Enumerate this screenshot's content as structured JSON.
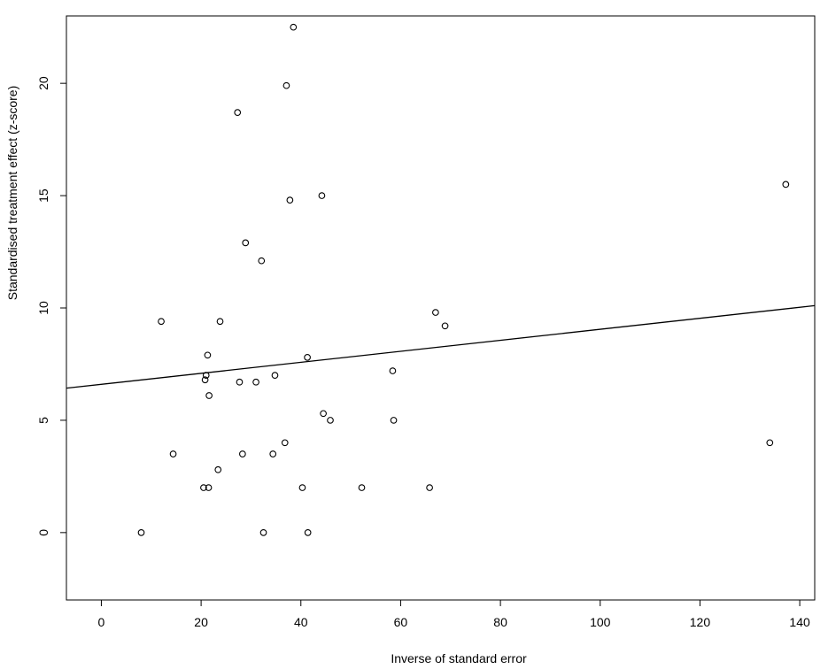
{
  "chart_data": {
    "type": "scatter",
    "title": "",
    "xlabel": "Inverse of standard error",
    "ylabel": "Standardised treatment effect (z-score)",
    "xlim": [
      -7,
      143
    ],
    "ylim": [
      -3,
      23
    ],
    "xticks": [
      "0",
      "20",
      "40",
      "60",
      "80",
      "100",
      "120",
      "140"
    ],
    "yticks": [
      "0",
      "5",
      "10",
      "15",
      "20"
    ],
    "grid": false,
    "legend": "none",
    "colors": {
      "points": "#000000",
      "line": "#000000",
      "frame": "#000000"
    },
    "points": [
      {
        "x": 8.0,
        "y": 0.0
      },
      {
        "x": 12.0,
        "y": 9.4
      },
      {
        "x": 14.4,
        "y": 3.5
      },
      {
        "x": 20.5,
        "y": 2.0
      },
      {
        "x": 20.8,
        "y": 6.8
      },
      {
        "x": 21.0,
        "y": 7.0
      },
      {
        "x": 21.3,
        "y": 7.9
      },
      {
        "x": 21.5,
        "y": 2.0
      },
      {
        "x": 21.6,
        "y": 6.1
      },
      {
        "x": 23.4,
        "y": 2.8
      },
      {
        "x": 23.8,
        "y": 9.4
      },
      {
        "x": 27.3,
        "y": 18.7
      },
      {
        "x": 27.7,
        "y": 6.7
      },
      {
        "x": 28.3,
        "y": 3.5
      },
      {
        "x": 28.9,
        "y": 12.9
      },
      {
        "x": 31.0,
        "y": 6.7
      },
      {
        "x": 32.1,
        "y": 12.1
      },
      {
        "x": 32.5,
        "y": 0.0
      },
      {
        "x": 34.4,
        "y": 3.5
      },
      {
        "x": 34.8,
        "y": 7.0
      },
      {
        "x": 36.8,
        "y": 4.0
      },
      {
        "x": 37.1,
        "y": 19.9
      },
      {
        "x": 37.8,
        "y": 14.8
      },
      {
        "x": 38.5,
        "y": 22.5
      },
      {
        "x": 40.3,
        "y": 2.0
      },
      {
        "x": 41.3,
        "y": 7.8
      },
      {
        "x": 41.4,
        "y": 0.0
      },
      {
        "x": 44.2,
        "y": 15.0
      },
      {
        "x": 44.5,
        "y": 5.3
      },
      {
        "x": 45.9,
        "y": 5.0
      },
      {
        "x": 52.2,
        "y": 2.0
      },
      {
        "x": 58.4,
        "y": 7.2
      },
      {
        "x": 58.6,
        "y": 5.0
      },
      {
        "x": 65.8,
        "y": 2.0
      },
      {
        "x": 67.0,
        "y": 9.8
      },
      {
        "x": 68.9,
        "y": 9.2
      },
      {
        "x": 134.0,
        "y": 4.0
      },
      {
        "x": 137.2,
        "y": 15.5
      }
    ],
    "regression_line": {
      "intercept": 6.6,
      "slope": 0.0245
    }
  }
}
